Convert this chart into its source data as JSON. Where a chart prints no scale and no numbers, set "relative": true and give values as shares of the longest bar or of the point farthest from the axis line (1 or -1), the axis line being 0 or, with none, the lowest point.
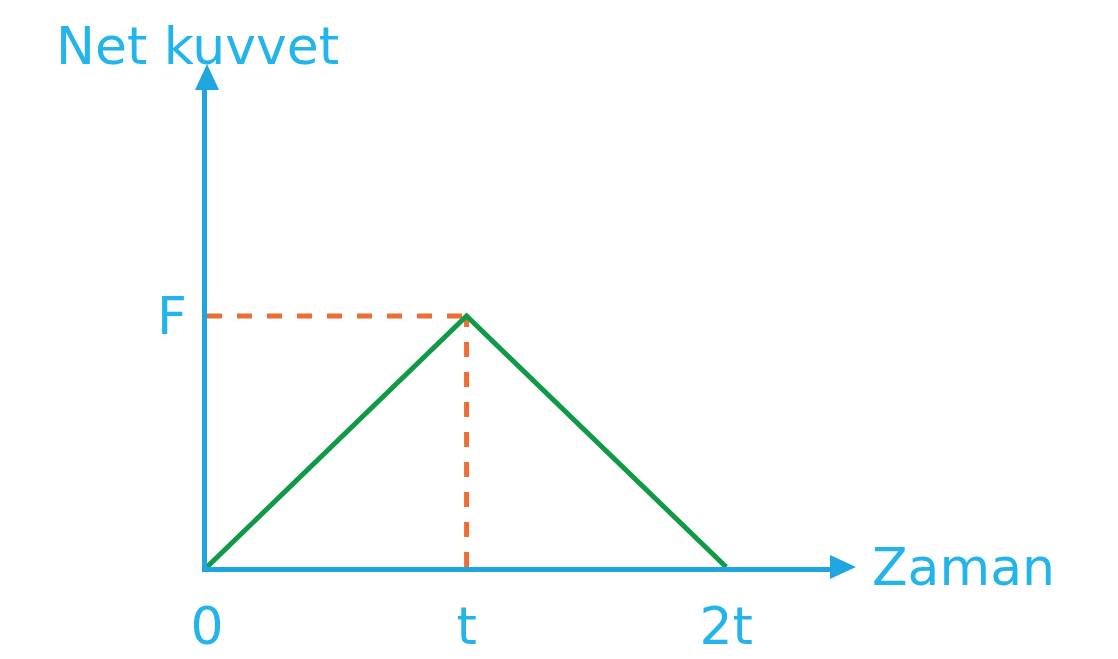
{
  "chart_data": {
    "type": "line",
    "xlabel": "Zaman",
    "ylabel": "Net kuvvet",
    "categories": [
      "0",
      "t",
      "2t"
    ],
    "series": [
      {
        "color": "#109a48",
        "values": [
          0,
          1,
          0
        ]
      }
    ],
    "relative": true,
    "ref_lines": [
      {
        "axis": "y",
        "value": 1,
        "label": "F",
        "color": "#ef6c33",
        "line_style": "dashed"
      },
      {
        "axis": "x",
        "value": "t",
        "color": "#ef6c33",
        "line_style": "dashed"
      }
    ],
    "grid": false,
    "marker": "none",
    "line_style": "solid"
  }
}
